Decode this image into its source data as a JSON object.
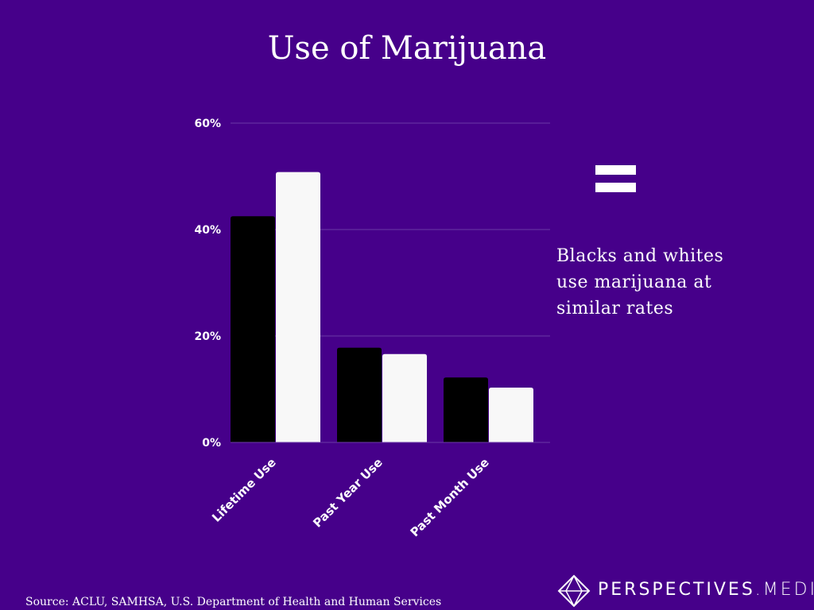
{
  "chart_data": {
    "type": "bar",
    "title": "Use of Marijuana",
    "categories": [
      "Lifetime Use",
      "Past Year Use",
      "Past Month Use"
    ],
    "series": [
      {
        "values": [
          42.5,
          17.8,
          12.2
        ],
        "color": "#000000"
      },
      {
        "values": [
          50.8,
          16.6,
          10.3
        ],
        "color": "#f8f8f8"
      }
    ],
    "yticks": [
      "0%",
      "20%",
      "40%",
      "60%"
    ],
    "ytick_values": [
      0,
      20,
      40,
      60
    ],
    "ylim": [
      0,
      60
    ],
    "grid": true,
    "xlabel": "",
    "ylabel": ""
  },
  "annotation": {
    "icon": "equal-sign-icon",
    "text": "Blacks and whites use marijuana at similar rates"
  },
  "source": "Source:  ACLU, SAMHSA, U.S. Department of Health and Human Services",
  "brand": {
    "name": "PERSPECTIVES",
    "suffix": ".MEDIA",
    "logo": "diamond-logo-icon"
  },
  "colors": {
    "background": "#46008a",
    "grid": "#6a3aa6"
  }
}
